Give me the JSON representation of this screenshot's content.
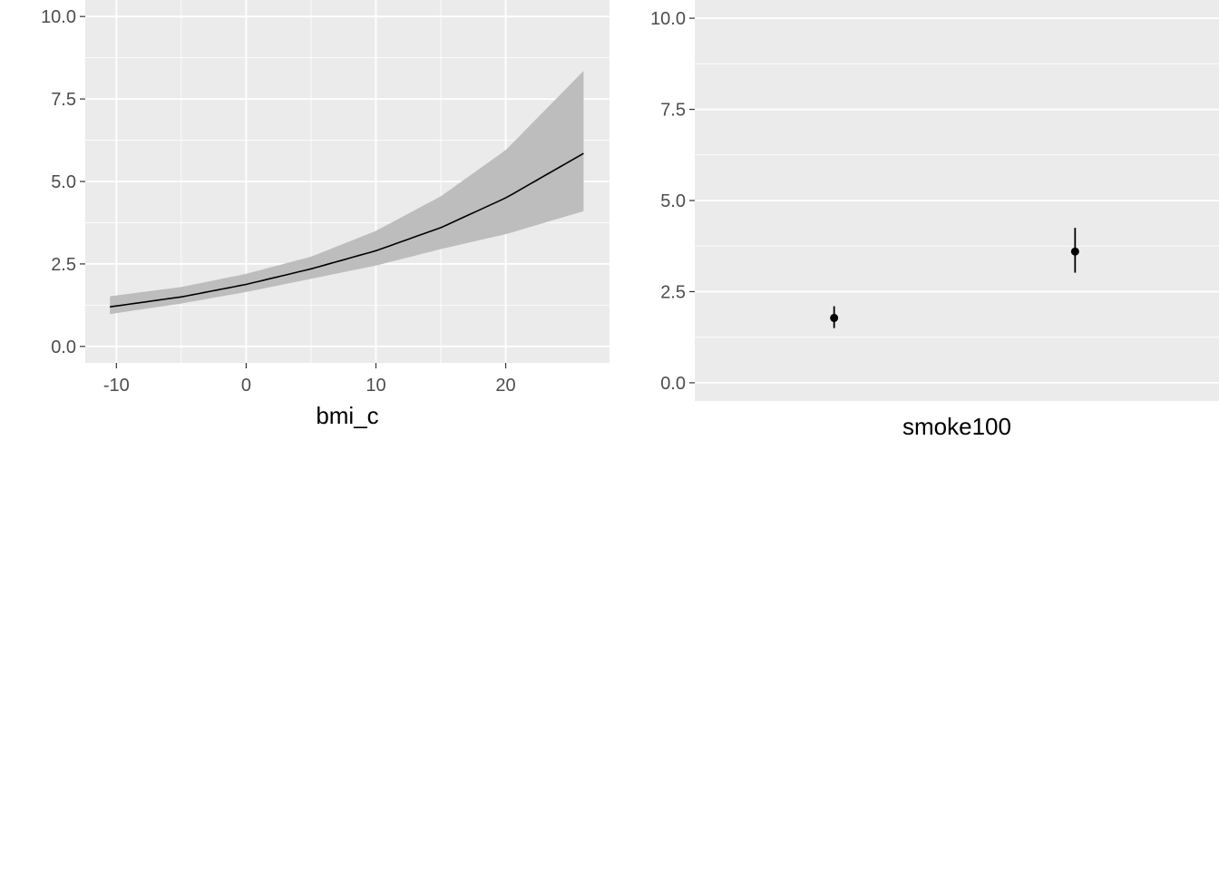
{
  "colors": {
    "panel_background": "#ebebeb",
    "grid_major": "#ffffff",
    "ribbon": "#bdbdbd",
    "line": "#000000",
    "tick_label": "#4d4d4d"
  },
  "chart_data": [
    {
      "type": "line",
      "subtype": "line-with-confidence-ribbon",
      "title": "",
      "xlabel": "bmi_c",
      "ylabel": "",
      "xlim": [
        -12.4,
        28
      ],
      "ylim": [
        -0.5,
        10.5
      ],
      "x_ticks": [
        -10,
        0,
        10,
        20
      ],
      "x_tick_labels": [
        "-10",
        "0",
        "10",
        "20"
      ],
      "y_ticks": [
        0,
        2.5,
        5,
        7.5,
        10
      ],
      "y_tick_labels": [
        "0.0",
        "2.5",
        "5.0",
        "7.5",
        "10.0"
      ],
      "grid": true,
      "legend": "none",
      "x": [
        -10.5,
        -5,
        0,
        5,
        10,
        15,
        20,
        26
      ],
      "y": [
        1.2,
        1.5,
        1.88,
        2.35,
        2.9,
        3.6,
        4.5,
        5.85
      ],
      "lower": [
        0.98,
        1.3,
        1.65,
        2.05,
        2.45,
        2.95,
        3.4,
        4.1
      ],
      "upper": [
        1.52,
        1.8,
        2.2,
        2.72,
        3.5,
        4.55,
        5.95,
        8.35
      ]
    },
    {
      "type": "scatter",
      "subtype": "point-with-error-bars",
      "title": "",
      "xlabel": "smoke100",
      "ylabel": "",
      "ylim": [
        -0.5,
        10.5
      ],
      "y_ticks": [
        0,
        2.5,
        5,
        7.5,
        10
      ],
      "y_tick_labels": [
        "0.0",
        "2.5",
        "5.0",
        "7.5",
        "10.0"
      ],
      "grid": true,
      "legend": "none",
      "categories": [
        "",
        ""
      ],
      "values": [
        1.78,
        3.6
      ],
      "lower": [
        1.5,
        3.02
      ],
      "upper": [
        2.1,
        4.25
      ]
    }
  ]
}
